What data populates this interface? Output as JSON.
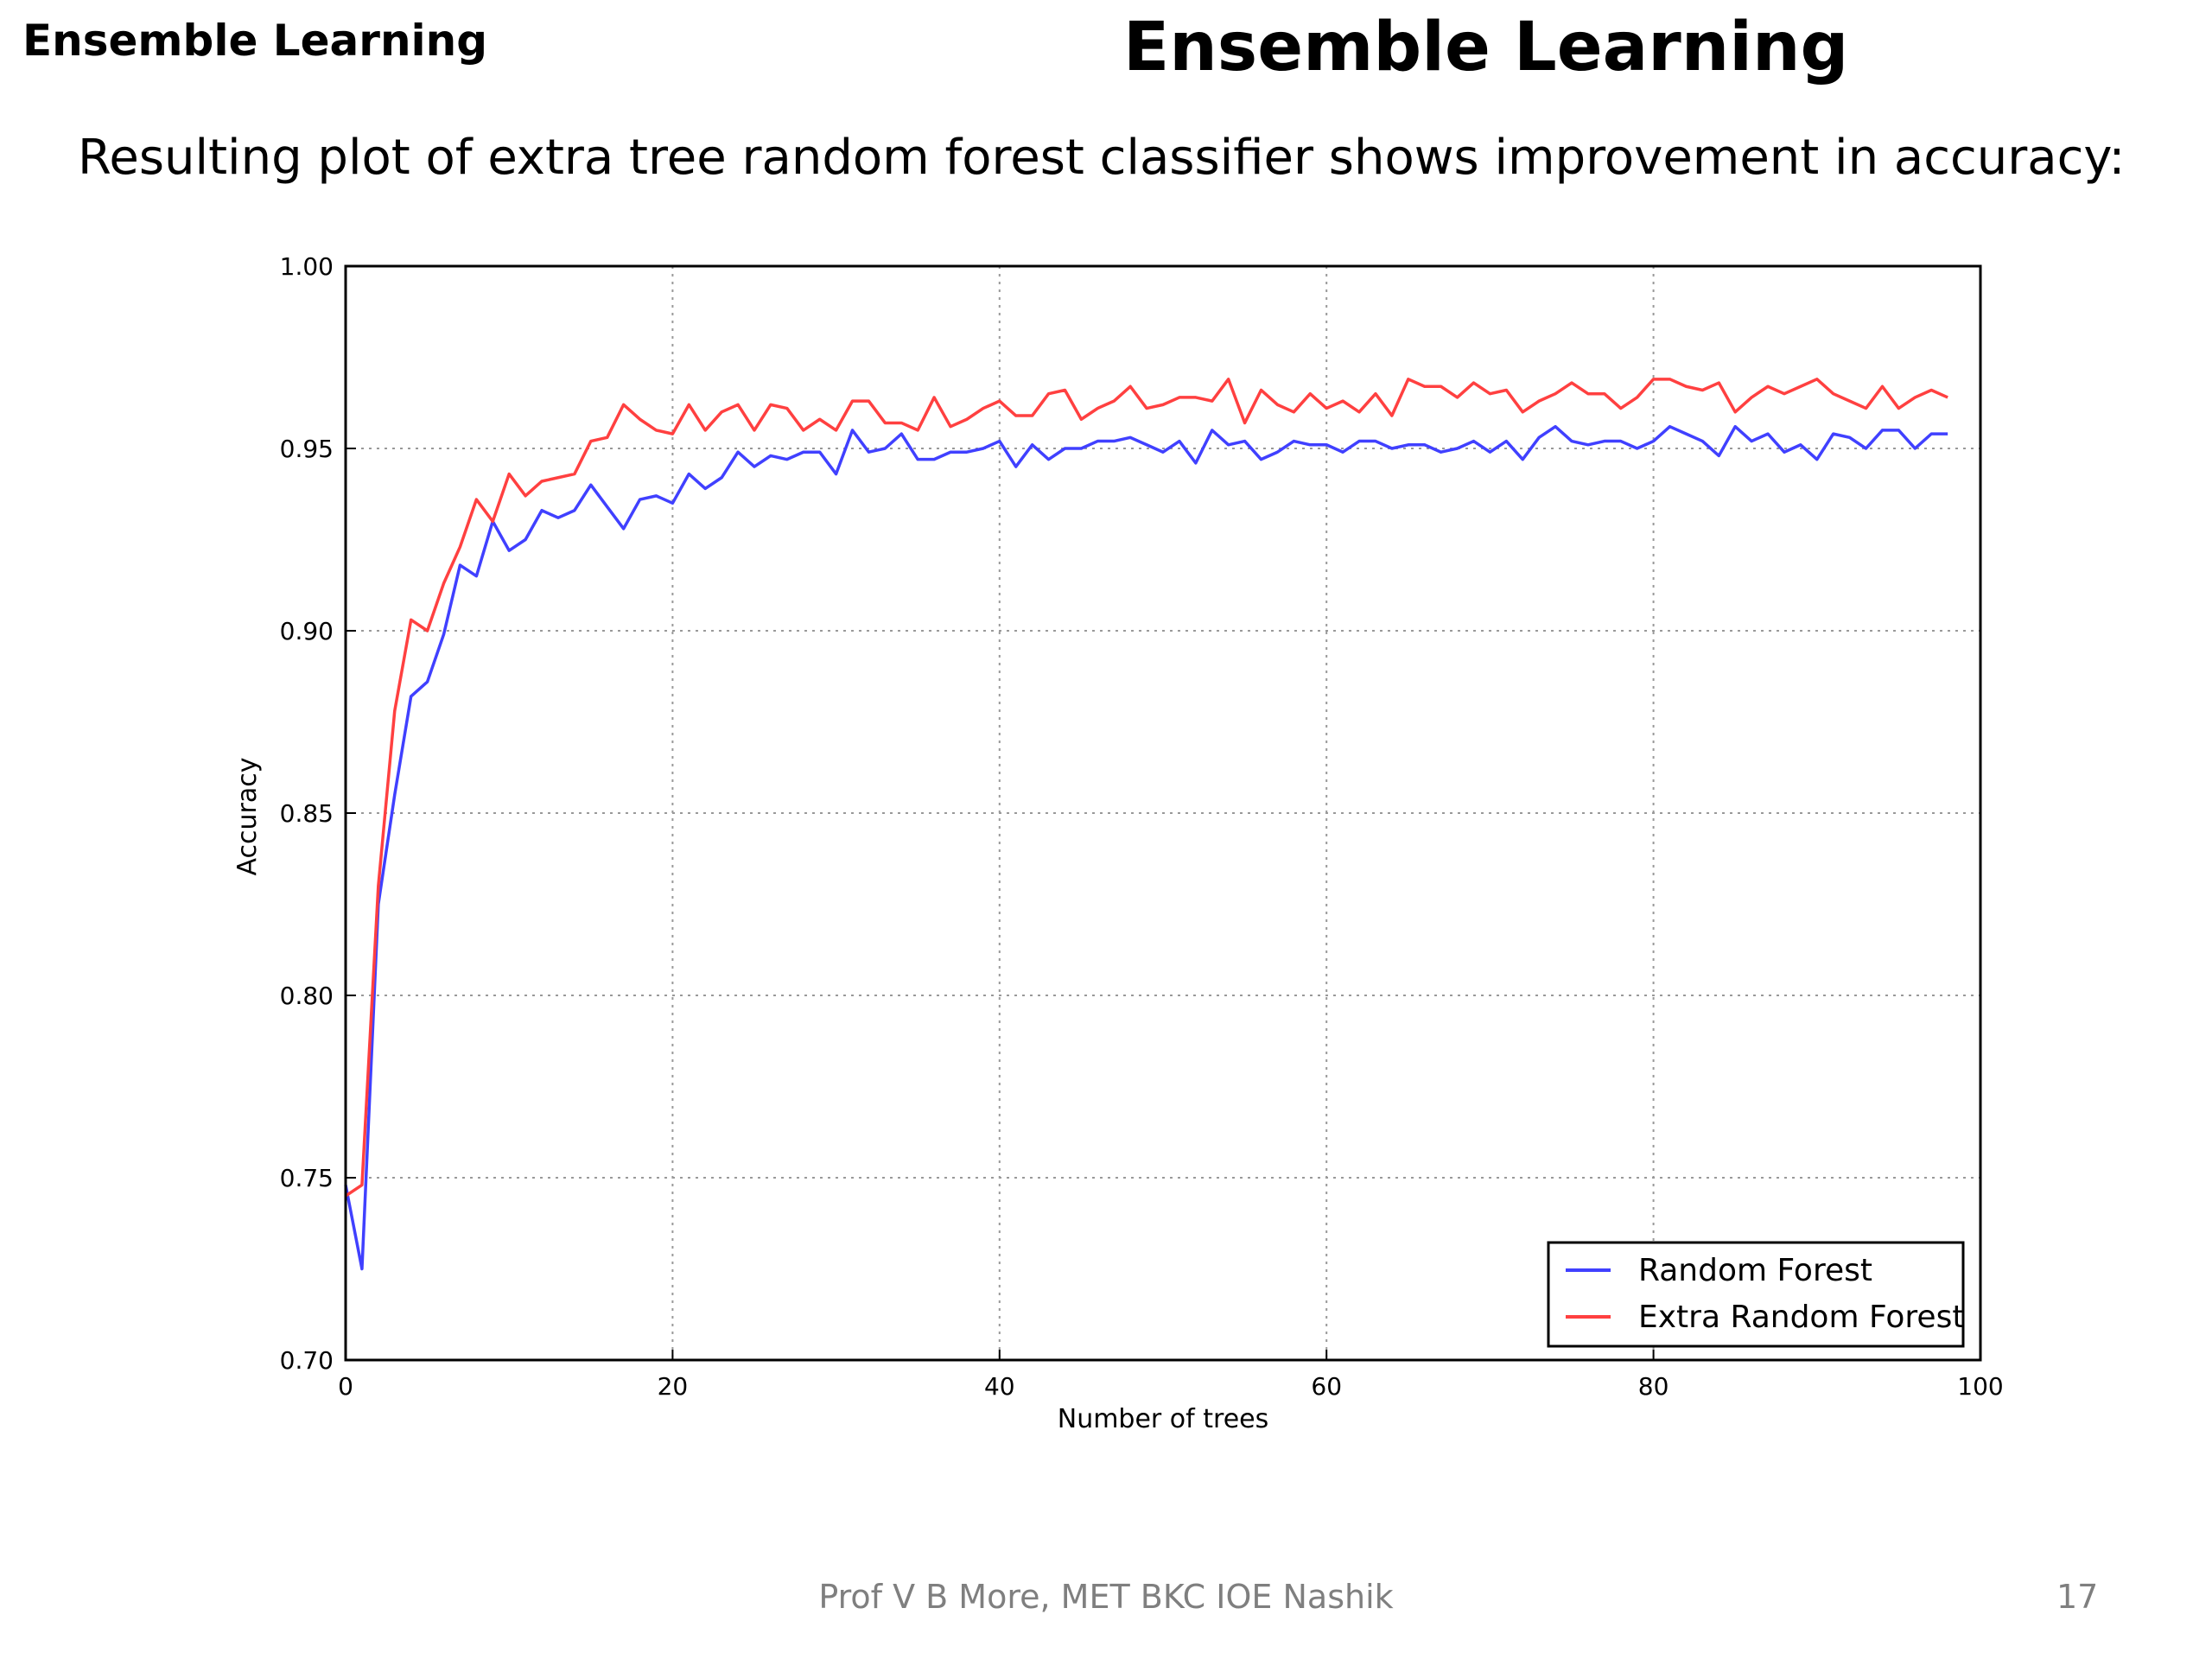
{
  "slide": {
    "corner_title": "Ensemble Learning",
    "title": "Ensemble Learning",
    "subtitle": "Resulting plot of extra tree random forest classifier shows improvement in accuracy:",
    "footer": "Prof V B More, MET BKC IOE Nashik",
    "page_number": "17"
  },
  "chart_data": {
    "type": "line",
    "title": "",
    "xlabel": "Number of trees",
    "ylabel": "Accuracy",
    "xlim": [
      0,
      100
    ],
    "ylim": [
      0.7,
      1.0
    ],
    "x_ticks": [
      0,
      20,
      40,
      60,
      80,
      100
    ],
    "y_ticks": [
      0.7,
      0.75,
      0.8,
      0.85,
      0.9,
      0.95,
      1.0
    ],
    "x_tick_labels": [
      "0",
      "20",
      "40",
      "60",
      "80",
      "100"
    ],
    "y_tick_labels": [
      "0.70",
      "0.75",
      "0.80",
      "0.85",
      "0.90",
      "0.95",
      "1.00"
    ],
    "grid": true,
    "legend_position": "lower-right",
    "x": [
      0,
      1,
      2,
      3,
      4,
      5,
      6,
      7,
      8,
      9,
      10,
      11,
      12,
      13,
      14,
      15,
      16,
      17,
      18,
      19,
      20,
      21,
      22,
      23,
      24,
      25,
      26,
      27,
      28,
      29,
      30,
      31,
      32,
      33,
      34,
      35,
      36,
      37,
      38,
      39,
      40,
      41,
      42,
      43,
      44,
      45,
      46,
      47,
      48,
      49,
      50,
      51,
      52,
      53,
      54,
      55,
      56,
      57,
      58,
      59,
      60,
      61,
      62,
      63,
      64,
      65,
      66,
      67,
      68,
      69,
      70,
      71,
      72,
      73,
      74,
      75,
      76,
      77,
      78,
      79,
      80,
      81,
      82,
      83,
      84,
      85,
      86,
      87,
      88,
      89,
      90,
      91,
      92,
      93,
      94,
      95,
      96,
      97,
      98
    ],
    "series": [
      {
        "name": "Random Forest",
        "color": "#4040ff",
        "values": [
          0.748,
          0.725,
          0.825,
          0.855,
          0.882,
          0.886,
          0.899,
          0.918,
          0.915,
          0.93,
          0.922,
          0.925,
          0.933,
          0.931,
          0.933,
          0.94,
          0.934,
          0.928,
          0.936,
          0.937,
          0.935,
          0.943,
          0.939,
          0.942,
          0.949,
          0.945,
          0.948,
          0.947,
          0.949,
          0.949,
          0.943,
          0.955,
          0.949,
          0.95,
          0.954,
          0.947,
          0.947,
          0.949,
          0.949,
          0.95,
          0.952,
          0.945,
          0.951,
          0.947,
          0.95,
          0.95,
          0.952,
          0.952,
          0.953,
          0.951,
          0.949,
          0.952,
          0.946,
          0.955,
          0.951,
          0.952,
          0.947,
          0.949,
          0.952,
          0.951,
          0.951,
          0.949,
          0.952,
          0.952,
          0.95,
          0.951,
          0.951,
          0.949,
          0.95,
          0.952,
          0.949,
          0.952,
          0.947,
          0.953,
          0.956,
          0.952,
          0.951,
          0.952,
          0.952,
          0.95,
          0.952,
          0.956,
          0.954,
          0.952,
          0.948,
          0.956,
          0.952,
          0.954,
          0.949,
          0.951,
          0.947,
          0.954,
          0.953,
          0.95,
          0.955,
          0.955,
          0.95,
          0.954,
          0.954
        ]
      },
      {
        "name": "Extra Random Forest",
        "color": "#ff4040",
        "values": [
          0.745,
          0.748,
          0.83,
          0.878,
          0.903,
          0.9,
          0.913,
          0.923,
          0.936,
          0.93,
          0.943,
          0.937,
          0.941,
          0.942,
          0.943,
          0.952,
          0.953,
          0.962,
          0.958,
          0.955,
          0.954,
          0.962,
          0.955,
          0.96,
          0.962,
          0.955,
          0.962,
          0.961,
          0.955,
          0.958,
          0.955,
          0.963,
          0.963,
          0.957,
          0.957,
          0.955,
          0.964,
          0.956,
          0.958,
          0.961,
          0.963,
          0.959,
          0.959,
          0.965,
          0.966,
          0.958,
          0.961,
          0.963,
          0.967,
          0.961,
          0.962,
          0.964,
          0.964,
          0.963,
          0.969,
          0.957,
          0.966,
          0.962,
          0.96,
          0.965,
          0.961,
          0.963,
          0.96,
          0.965,
          0.959,
          0.969,
          0.967,
          0.967,
          0.964,
          0.968,
          0.965,
          0.966,
          0.96,
          0.963,
          0.965,
          0.968,
          0.965,
          0.965,
          0.961,
          0.964,
          0.969,
          0.969,
          0.967,
          0.966,
          0.968,
          0.96,
          0.964,
          0.967,
          0.965,
          0.967,
          0.969,
          0.965,
          0.963,
          0.961,
          0.967,
          0.961,
          0.964,
          0.966,
          0.964
        ]
      }
    ]
  }
}
